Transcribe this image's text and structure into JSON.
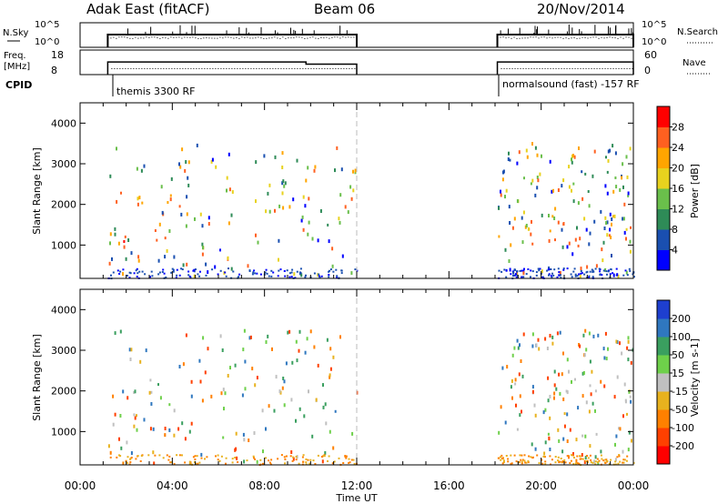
{
  "header": {
    "title": "Adak East (fitACF)",
    "beam": "Beam 06",
    "date": "20/Nov/2014"
  },
  "params": {
    "nsky_label": "N.Sky",
    "nsearch_label": "N.Search",
    "freq_label_1": "Freq.",
    "freq_label_2": "[MHz]",
    "nave_label": "Nave",
    "cpid_label": "CPID",
    "cpid_left": "themis 3300 RF",
    "cpid_right": "normalsound (fast) -157 RF",
    "nsky_ticks": [
      "10^5",
      "10^0"
    ],
    "nsearch_ticks": [
      "10^5",
      "10^0"
    ],
    "freq_ticks": [
      "18",
      "8"
    ],
    "nave_ticks": [
      "60",
      "0"
    ]
  },
  "axes": {
    "xlabel": "Time UT",
    "ylabel": "Slant Range [km]",
    "xticks": [
      "00:00",
      "04:00",
      "08:00",
      "12:00",
      "16:00",
      "20:00",
      "00:00"
    ],
    "yticks": [
      "1000",
      "2000",
      "3000",
      "4000"
    ]
  },
  "colorbars": {
    "power": {
      "label": "Power [dB]",
      "ticks": [
        "4",
        "8",
        "12",
        "16",
        "20",
        "24",
        "28"
      ],
      "colors": [
        "#0000ff",
        "#1a4fb0",
        "#2e8b57",
        "#6abf4b",
        "#e8d21e",
        "#ffa500",
        "#ff6020",
        "#ff0000"
      ]
    },
    "velocity": {
      "label": "Velocity [m s-1]",
      "ticks": [
        "200",
        "100",
        "50",
        "15",
        "-15",
        "-50",
        "-100",
        "-200"
      ],
      "colors": [
        "#1e3fcf",
        "#2f77bf",
        "#3a9f5f",
        "#6ed04a",
        "#c0c0c0",
        "#e8b21e",
        "#ff8000",
        "#ff4000",
        "#ff0000"
      ]
    }
  },
  "chart_data": [
    {
      "type": "heatmap",
      "name": "Power",
      "x_range_hours": [
        0,
        24
      ],
      "y_range_km": [
        180,
        4500
      ],
      "data_intervals_hours": [
        [
          1.2,
          12.0
        ],
        [
          18.1,
          24.0
        ]
      ],
      "regions": [
        {
          "t0": 1.2,
          "t1": 4.3,
          "r0": 900,
          "r1": 2500,
          "power": 24
        },
        {
          "t0": 1.2,
          "t1": 3.6,
          "r0": 900,
          "r1": 1500,
          "power": 28
        },
        {
          "t0": 5.3,
          "t1": 6.2,
          "r0": 850,
          "r1": 1200,
          "power": 6
        },
        {
          "t0": 10.1,
          "t1": 12.0,
          "r0": 1450,
          "r1": 1650,
          "power": 10
        },
        {
          "t0": 18.1,
          "t1": 24.0,
          "r0": 900,
          "r1": 2100,
          "power": 24
        },
        {
          "t0": 18.1,
          "t1": 24.0,
          "r0": 2000,
          "r1": 3200,
          "power": 12
        }
      ]
    },
    {
      "type": "heatmap",
      "name": "Velocity",
      "x_range_hours": [
        0,
        24
      ],
      "y_range_km": [
        180,
        4500
      ],
      "regions": [
        {
          "t0": 1.2,
          "t1": 4.0,
          "r0": 900,
          "r1": 2400,
          "velocity": 0
        },
        {
          "t0": 3.0,
          "t1": 4.2,
          "r0": 1900,
          "r1": 2200,
          "velocity": 60
        },
        {
          "t0": 5.3,
          "t1": 6.2,
          "r0": 850,
          "r1": 1200,
          "velocity": 30
        },
        {
          "t0": 10.1,
          "t1": 12.0,
          "r0": 1450,
          "r1": 1650,
          "velocity": 180
        },
        {
          "t0": 18.1,
          "t1": 24.0,
          "r0": 900,
          "r1": 2500,
          "velocity": 0
        }
      ]
    },
    {
      "type": "line",
      "name": "Frequency",
      "x": [
        1.2,
        9.8,
        9.8,
        12.0,
        18.1,
        24.0
      ],
      "values": [
        13.5,
        13.5,
        12.2,
        12.2,
        13.5,
        13.5
      ]
    }
  ]
}
